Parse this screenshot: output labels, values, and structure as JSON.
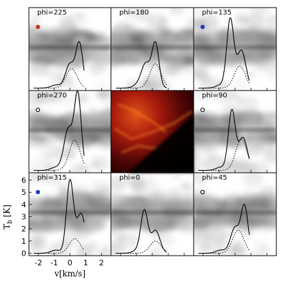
{
  "chart_data": {
    "type": "line",
    "xlabel": "v[km/s]",
    "ylabel": "T_b [K]",
    "xlim": [
      -2.6,
      2.6
    ],
    "ylim": [
      -0.2,
      6.6
    ],
    "x_ticks": [
      "-2",
      "-1",
      "0",
      "1",
      "2"
    ],
    "y_ticks": [
      "0",
      "1",
      "2",
      "3",
      "4",
      "5",
      "6"
    ],
    "center_image": "red intensity map (no label)",
    "panels": [
      {
        "label": "phi=225",
        "marker": "filled-red",
        "marker_color": "#c0392b",
        "solid_peak_v": 0.6,
        "solid_peak": 3.6,
        "dotted_peak_v": 0.1,
        "dotted_peak": 1.6
      },
      {
        "label": "phi=180",
        "marker": "none",
        "marker_color": "",
        "solid_peak_v": 0.2,
        "solid_peak": 3.6,
        "dotted_peak_v": 0.2,
        "dotted_peak": 2.0
      },
      {
        "label": "phi=135",
        "marker": "filled-blue",
        "marker_color": "#1f3fbf",
        "solid_peak_v": -0.3,
        "solid_peak": 5.6,
        "dotted_peak_v": 0.3,
        "dotted_peak": 1.8
      },
      {
        "label": "phi=270",
        "marker": "open",
        "marker_color": "#000000",
        "solid_peak_v": 0.5,
        "solid_peak": 6.2,
        "dotted_peak_v": 0.3,
        "dotted_peak": 2.5
      },
      {
        "label": "phi=90",
        "marker": "open",
        "marker_color": "#000000",
        "solid_peak_v": -0.2,
        "solid_peak": 4.9,
        "dotted_peak_v": 0.4,
        "dotted_peak": 2.6
      },
      {
        "label": "phi=315",
        "marker": "filled-blue",
        "marker_color": "#1f3fbf",
        "solid_peak_v": 0.0,
        "solid_peak": 5.9,
        "dotted_peak_v": 0.3,
        "dotted_peak": 1.2
      },
      {
        "label": "phi=0",
        "marker": "none",
        "marker_color": "",
        "solid_peak_v": -0.5,
        "solid_peak": 3.4,
        "dotted_peak_v": 0.2,
        "dotted_peak": 1.0
      },
      {
        "label": "phi=45",
        "marker": "open",
        "marker_color": "#000000",
        "solid_peak_v": 0.6,
        "solid_peak": 3.8,
        "dotted_peak_v": 0.2,
        "dotted_peak": 1.9
      }
    ]
  },
  "axis": {
    "xlabel": "v[km/s]",
    "ylabel_main": "T",
    "ylabel_sub": "b",
    "ylabel_unit": " [K]"
  }
}
